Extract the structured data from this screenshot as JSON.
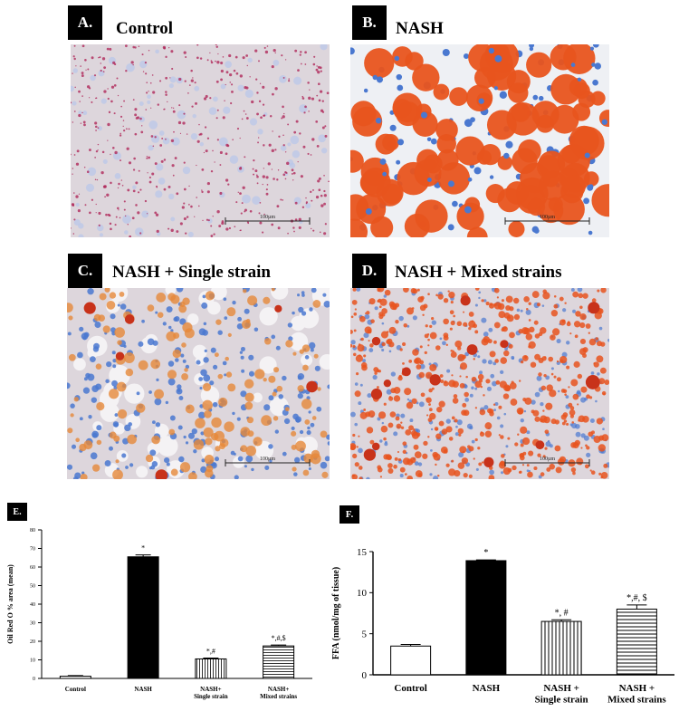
{
  "panels": [
    {
      "tag": "A.",
      "title": "Control",
      "scale_label": "100µm",
      "stain": "control"
    },
    {
      "tag": "B.",
      "title": "NASH",
      "scale_label": "100µm",
      "stain": "nash"
    },
    {
      "tag": "C.",
      "title": "NASH + Single strain",
      "scale_label": "100µm",
      "stain": "single"
    },
    {
      "tag": "D.",
      "title": "NASH + Mixed strains",
      "scale_label": "100µm",
      "stain": "mixed"
    }
  ],
  "colors": {
    "lipid": "#e8541e",
    "lipid_dark": "#c8321a",
    "nuclei": "#4a78d0",
    "control_dots": "#b0285a",
    "tissue_bg": "#ddd6dc",
    "bar_black": "#000000"
  },
  "chart_data": [
    {
      "tag": "E.",
      "type": "bar",
      "title": "",
      "xlabel": "",
      "ylabel": "Oil Red O % area (mean)",
      "ylim": [
        0,
        80
      ],
      "yticks": [
        0,
        10,
        20,
        30,
        40,
        50,
        60,
        70,
        80
      ],
      "categories": [
        "Control",
        "NASH",
        "NASH+ Single strain",
        "NASH+ Mixed strains"
      ],
      "category_lines": [
        [
          "Control"
        ],
        [
          "NASH"
        ],
        [
          "NASH+",
          "Single strain"
        ],
        [
          "NASH+",
          "Mixed strains"
        ]
      ],
      "values": [
        1.2,
        65.5,
        10.5,
        17.5
      ],
      "errors": [
        0.3,
        1.0,
        0.5,
        0.5
      ],
      "fills": [
        "white",
        "black",
        "vertical",
        "horizontal"
      ],
      "annotations": [
        "",
        "*",
        "*,#",
        "*,#,$"
      ],
      "grid": false,
      "legend": "none"
    },
    {
      "tag": "F.",
      "type": "bar",
      "title": "",
      "xlabel": "",
      "ylabel": "FFA (nmol/mg of tissue)",
      "ylim": [
        0,
        15
      ],
      "yticks": [
        0,
        5,
        10,
        15
      ],
      "categories": [
        "Control",
        "NASH",
        "NASH + Single strain",
        "NASH + Mixed strains"
      ],
      "category_lines": [
        [
          "Control"
        ],
        [
          "NASH"
        ],
        [
          "NASH +",
          "Single strain"
        ],
        [
          "NASH +",
          "Mixed strains"
        ]
      ],
      "values": [
        3.5,
        13.9,
        6.5,
        8.0
      ],
      "errors": [
        0.2,
        0.1,
        0.2,
        0.5
      ],
      "fills": [
        "white",
        "black",
        "vertical",
        "horizontal"
      ],
      "annotations": [
        "",
        "*",
        "*, #",
        "*,#, $"
      ],
      "grid": false,
      "legend": "none"
    }
  ]
}
